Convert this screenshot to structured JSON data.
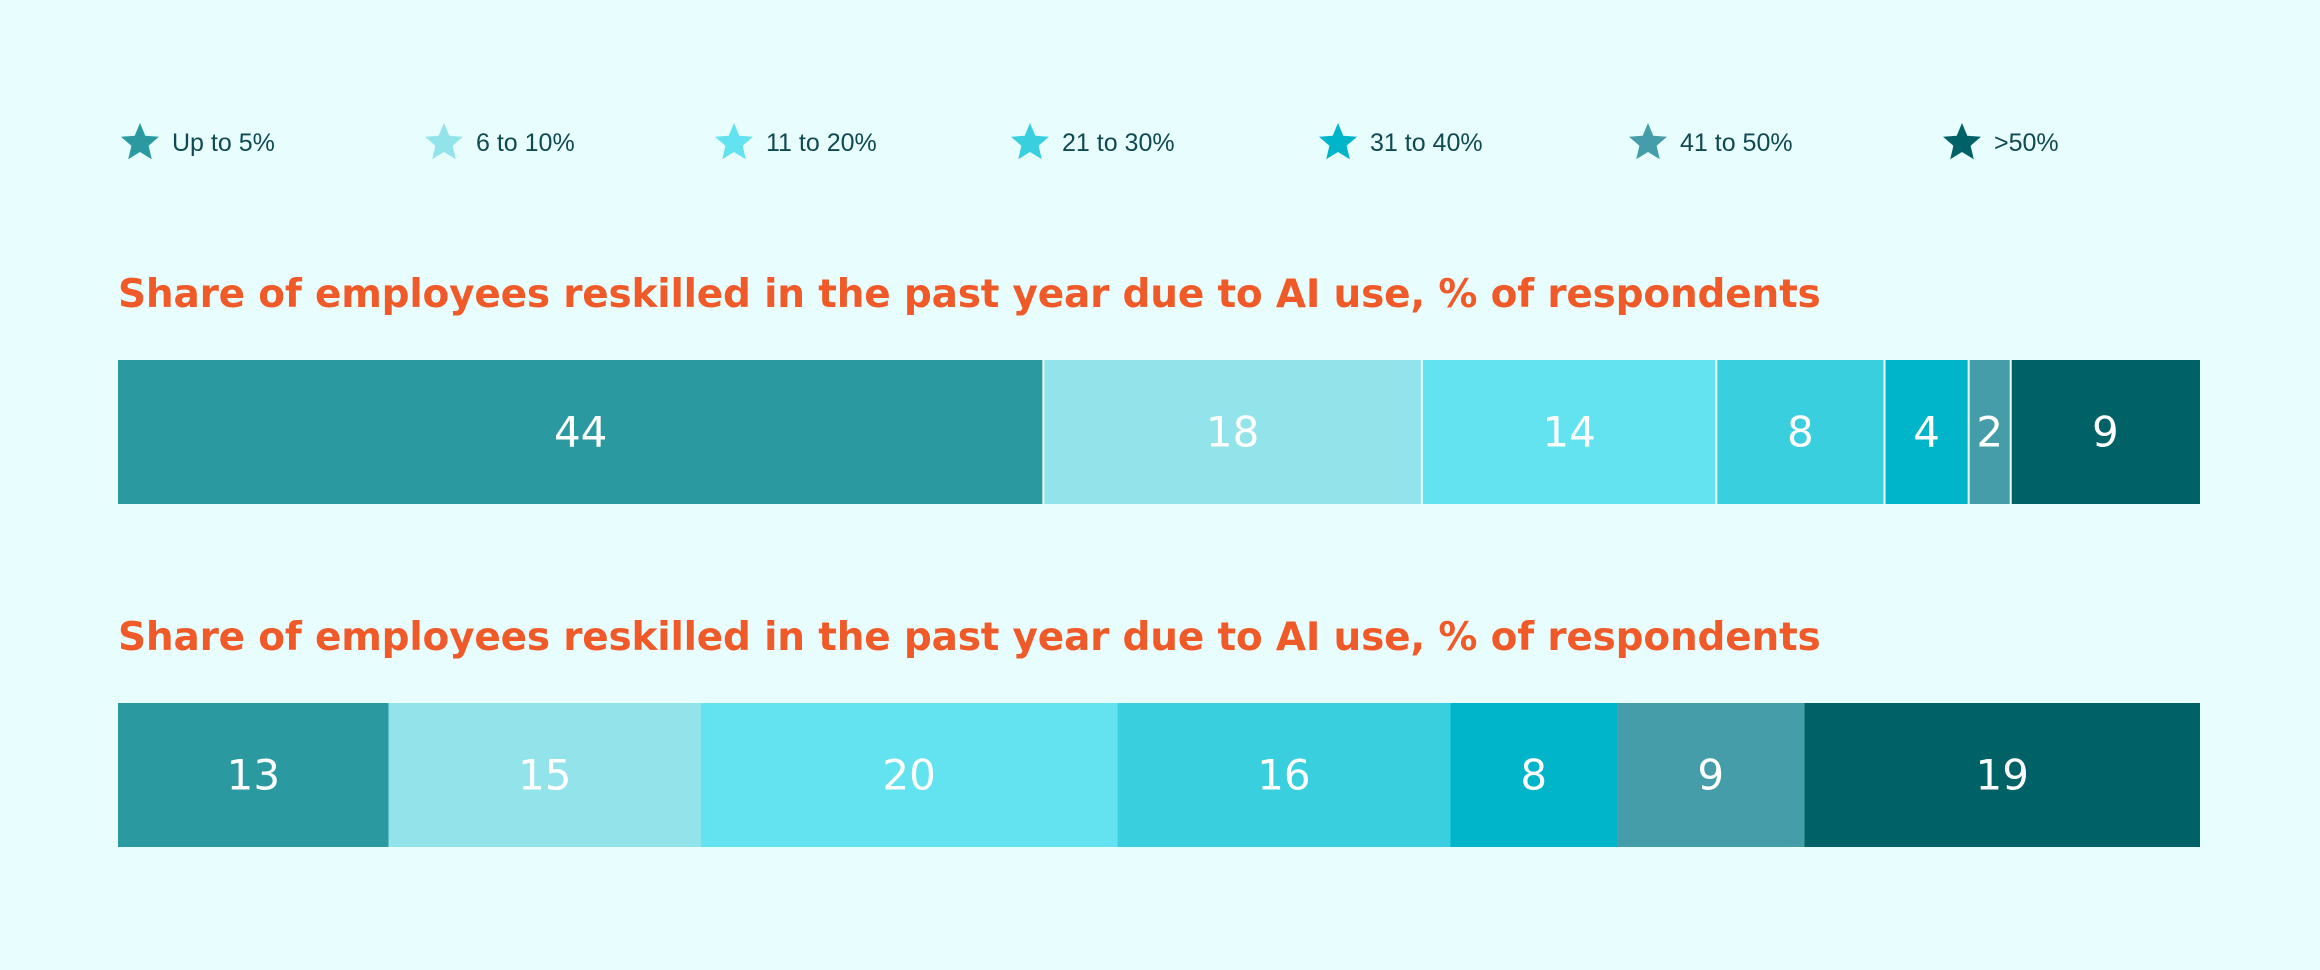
{
  "legend": {
    "items": [
      {
        "label": "Up to 5%",
        "color": "#2a9aa0"
      },
      {
        "label": "6 to 10%",
        "color": "#93e3eb"
      },
      {
        "label": "11 to 20%",
        "color": "#62e3ef"
      },
      {
        "label": "21 to 30%",
        "color": "#3acfdf"
      },
      {
        "label": "31 to 40%",
        "color": "#00b5ca"
      },
      {
        "label": "41 to 50%",
        "color": "#449da8"
      },
      {
        "label": ">50%",
        "color": "#006266"
      }
    ]
  },
  "chart_data": [
    {
      "type": "bar",
      "orientation": "horizontal-stacked",
      "title": "Share of employees reskilled in the past year due to AI use, % of respondents",
      "categories": [
        "Up to 5%",
        "6 to 10%",
        "11 to 20%",
        "21 to 30%",
        "31 to 40%",
        "41 to 50%",
        ">50%"
      ],
      "values": [
        44,
        18,
        14,
        8,
        4,
        2,
        9
      ],
      "colors": [
        "#2a9aa0",
        "#93e3eb",
        "#62e3ef",
        "#3acfdf",
        "#00b5ca",
        "#449da8",
        "#006266"
      ],
      "xlim": [
        0,
        99
      ],
      "grid": false,
      "legend": "top"
    },
    {
      "type": "bar",
      "orientation": "horizontal-stacked",
      "title": "Share of employees reskilled in the past year due to AI use, % of respondents",
      "categories": [
        "Up to 5%",
        "6 to 10%",
        "11 to 20%",
        "21 to 30%",
        "31 to 40%",
        "41 to 50%",
        ">50%"
      ],
      "values": [
        13,
        15,
        20,
        16,
        8,
        9,
        19
      ],
      "colors": [
        "#2a9aa0",
        "#93e3eb",
        "#62e3ef",
        "#3acfdf",
        "#00b5ca",
        "#449da8",
        "#006266"
      ],
      "xlim": [
        0,
        100
      ],
      "grid": false,
      "legend": "top"
    }
  ]
}
